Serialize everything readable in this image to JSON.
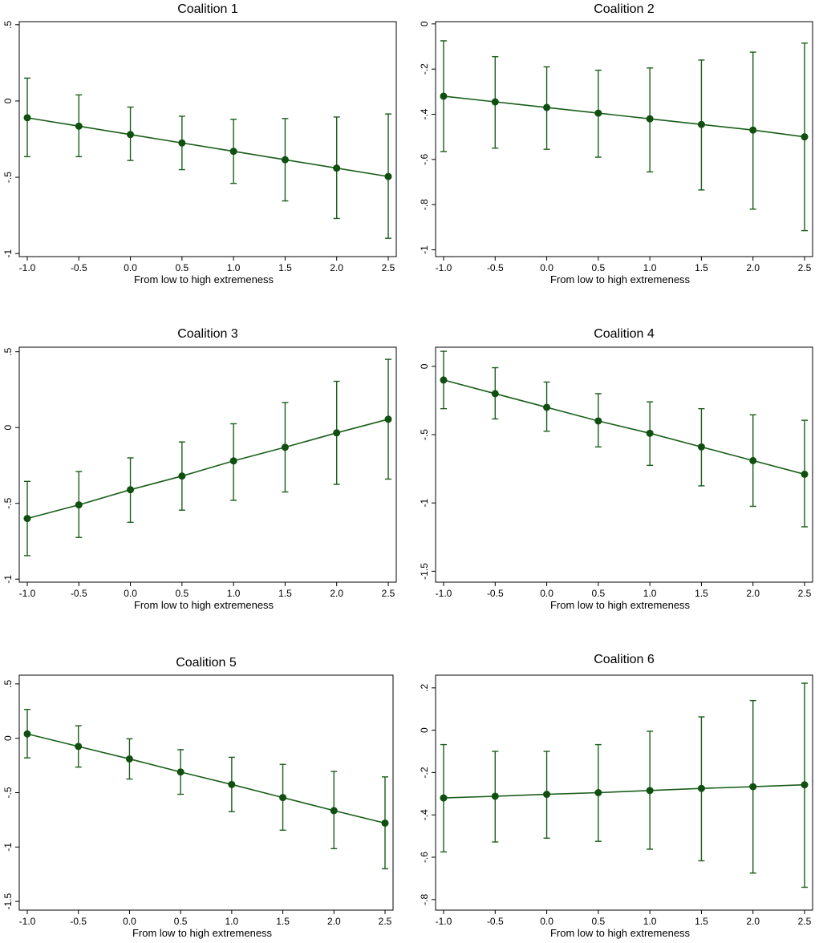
{
  "figure": {
    "line_color": "#1a5e1a",
    "marker_color": "#0f4f0f"
  },
  "chart_data": [
    {
      "type": "line",
      "title": "Coalition 1",
      "xlabel": "From low to high extremeness",
      "ylabel": "",
      "x": [
        -1.0,
        -0.5,
        0.0,
        0.5,
        1.0,
        1.5,
        2.0,
        2.5
      ],
      "xticks": [
        "-1.0",
        "-0.5",
        "0.0",
        "0.5",
        "1.0",
        "1.5",
        "2.0",
        "2.5"
      ],
      "y": [
        -0.11,
        -0.165,
        -0.22,
        -0.275,
        -0.33,
        -0.385,
        -0.44,
        -0.495
      ],
      "ci_low": [
        -0.365,
        -0.365,
        -0.39,
        -0.45,
        -0.54,
        -0.655,
        -0.77,
        -0.9
      ],
      "ci_high": [
        0.15,
        0.04,
        -0.04,
        -0.1,
        -0.12,
        -0.115,
        -0.105,
        -0.085
      ],
      "yticks": [
        0.5,
        0,
        -0.5,
        -1
      ],
      "ytick_labels": [
        ".5",
        "0",
        "-.5",
        "-1"
      ],
      "ylim": [
        -1.02,
        0.52
      ]
    },
    {
      "type": "line",
      "title": "Coalition 2",
      "xlabel": "From low to high extremeness",
      "ylabel": "",
      "x": [
        -1.0,
        -0.5,
        0.0,
        0.5,
        1.0,
        1.5,
        2.0,
        2.5
      ],
      "xticks": [
        "-1.0",
        "-0.5",
        "0.0",
        "0.5",
        "1.0",
        "1.5",
        "2.0",
        "2.5"
      ],
      "y": [
        -0.32,
        -0.345,
        -0.37,
        -0.395,
        -0.42,
        -0.445,
        -0.47,
        -0.5
      ],
      "ci_low": [
        -0.565,
        -0.55,
        -0.555,
        -0.59,
        -0.655,
        -0.735,
        -0.82,
        -0.915
      ],
      "ci_high": [
        -0.075,
        -0.145,
        -0.19,
        -0.205,
        -0.195,
        -0.16,
        -0.125,
        -0.085
      ],
      "yticks": [
        0,
        -0.2,
        -0.4,
        -0.6,
        -0.8,
        -1
      ],
      "ytick_labels": [
        "0",
        "-.2",
        "-.4",
        "-.6",
        "-.8",
        "-1"
      ],
      "ylim": [
        -1.03,
        0.01
      ]
    },
    {
      "type": "line",
      "title": "Coalition 3",
      "xlabel": "From low to high extremeness",
      "ylabel": "",
      "x": [
        -1.0,
        -0.5,
        0.0,
        0.5,
        1.0,
        1.5,
        2.0,
        2.5
      ],
      "xticks": [
        "-1.0",
        "-0.5",
        "0.0",
        "0.5",
        "1.0",
        "1.5",
        "2.0",
        "2.5"
      ],
      "y": [
        -0.6,
        -0.51,
        -0.41,
        -0.32,
        -0.22,
        -0.13,
        -0.035,
        0.055
      ],
      "ci_low": [
        -0.845,
        -0.725,
        -0.625,
        -0.545,
        -0.48,
        -0.425,
        -0.375,
        -0.34
      ],
      "ci_high": [
        -0.355,
        -0.29,
        -0.2,
        -0.095,
        0.025,
        0.165,
        0.305,
        0.45
      ],
      "yticks": [
        0.5,
        0,
        -0.5,
        -1
      ],
      "ytick_labels": [
        ".5",
        "0",
        "-.5",
        "-1"
      ],
      "ylim": [
        -1.02,
        0.53
      ]
    },
    {
      "type": "line",
      "title": "Coalition 4",
      "xlabel": "From low to high extremeness",
      "ylabel": "",
      "x": [
        -1.0,
        -0.5,
        0.0,
        0.5,
        1.0,
        1.5,
        2.0,
        2.5
      ],
      "xticks": [
        "-1.0",
        "-0.5",
        "0.0",
        "0.5",
        "1.0",
        "1.5",
        "2.0",
        "2.5"
      ],
      "y": [
        -0.1,
        -0.2,
        -0.3,
        -0.4,
        -0.49,
        -0.59,
        -0.69,
        -0.79
      ],
      "ci_low": [
        -0.31,
        -0.385,
        -0.475,
        -0.59,
        -0.725,
        -0.875,
        -1.025,
        -1.175
      ],
      "ci_high": [
        0.11,
        -0.01,
        -0.115,
        -0.2,
        -0.26,
        -0.31,
        -0.355,
        -0.395
      ],
      "yticks": [
        0,
        -0.5,
        -1,
        -1.5
      ],
      "ytick_labels": [
        "0",
        "-.5",
        "-1",
        "-1.5"
      ],
      "ylim": [
        -1.58,
        0.14
      ]
    },
    {
      "type": "line",
      "title": "Coalition 5",
      "xlabel": "From low to high extremeness",
      "ylabel": "",
      "x": [
        -1.0,
        -0.5,
        0.0,
        0.5,
        1.0,
        1.5,
        2.0,
        2.5
      ],
      "xticks": [
        "-1.0",
        "-0.5",
        "0.0",
        "0.5",
        "1.0",
        "1.5",
        "2.0",
        "2.5"
      ],
      "y": [
        0.04,
        -0.075,
        -0.19,
        -0.31,
        -0.425,
        -0.545,
        -0.665,
        -0.78
      ],
      "ci_low": [
        -0.18,
        -0.265,
        -0.375,
        -0.515,
        -0.675,
        -0.845,
        -1.015,
        -1.2
      ],
      "ci_high": [
        0.265,
        0.115,
        -0.005,
        -0.105,
        -0.175,
        -0.24,
        -0.305,
        -0.355
      ],
      "yticks": [
        0.5,
        0,
        -0.5,
        -1,
        -1.5
      ],
      "ytick_labels": [
        ".5",
        "0",
        "-.5",
        "-1",
        "-1.5"
      ],
      "ylim": [
        -1.58,
        0.58
      ]
    },
    {
      "type": "line",
      "title": "Coalition 6",
      "xlabel": "From low to high extremeness",
      "ylabel": "",
      "x": [
        -1.0,
        -0.5,
        0.0,
        0.5,
        1.0,
        1.5,
        2.0,
        2.5
      ],
      "xticks": [
        "-1.0",
        "-0.5",
        "0.0",
        "0.5",
        "1.0",
        "1.5",
        "2.0",
        "2.5"
      ],
      "y": [
        -0.32,
        -0.312,
        -0.303,
        -0.295,
        -0.285,
        -0.275,
        -0.267,
        -0.258
      ],
      "ci_low": [
        -0.575,
        -0.528,
        -0.51,
        -0.525,
        -0.562,
        -0.617,
        -0.675,
        -0.742
      ],
      "ci_high": [
        -0.068,
        -0.1,
        -0.1,
        -0.068,
        -0.005,
        0.063,
        0.14,
        0.222
      ],
      "yticks": [
        0.2,
        0,
        -0.2,
        -0.4,
        -0.6,
        -0.8
      ],
      "ytick_labels": [
        ".2",
        "0",
        "-.2",
        "-.4",
        "-.6",
        "-.8"
      ],
      "ylim": [
        -0.85,
        0.26
      ]
    }
  ]
}
